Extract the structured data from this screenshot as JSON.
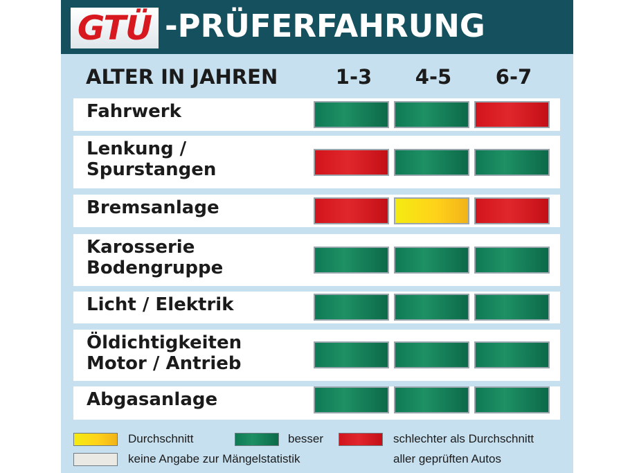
{
  "header": {
    "logo_text": "GTÜ",
    "title": "-PRÜFERFAHRUNG"
  },
  "table": {
    "row_header": "ALTER IN JAHREN",
    "columns": [
      "1-3",
      "4-5",
      "6-7"
    ],
    "rows": [
      {
        "label": "Fahrwerk",
        "ratings": [
          "besser",
          "besser",
          "schlechter"
        ]
      },
      {
        "label": "Lenkung /\nSpurstangen",
        "ratings": [
          "schlechter",
          "besser",
          "besser"
        ]
      },
      {
        "label": "Bremsanlage",
        "ratings": [
          "schlechter",
          "durchschnitt",
          "schlechter"
        ]
      },
      {
        "label": "Karosserie\nBodengruppe",
        "ratings": [
          "besser",
          "besser",
          "besser"
        ]
      },
      {
        "label": "Licht / Elektrik",
        "ratings": [
          "besser",
          "besser",
          "besser"
        ]
      },
      {
        "label": "Öldichtigkeiten\nMotor / Antrieb",
        "ratings": [
          "besser",
          "besser",
          "besser"
        ]
      },
      {
        "label": "Abgasanlage",
        "ratings": [
          "besser",
          "besser",
          "besser"
        ]
      }
    ]
  },
  "legend": {
    "durchschnitt": "Durchschnitt",
    "besser": "besser",
    "schlechter": "schlechter als Durchschnitt",
    "schlechter_line2": "aller geprüften Autos",
    "keine_angabe": "keine Angabe zur Mängelstatistik"
  },
  "colors": {
    "besser": "#128059",
    "schlechter": "#d81a20",
    "durchschnitt": "#f8d716",
    "keine_angabe": "#ebe9e3",
    "title_bar": "#15505e",
    "background": "#c7e0ef"
  }
}
